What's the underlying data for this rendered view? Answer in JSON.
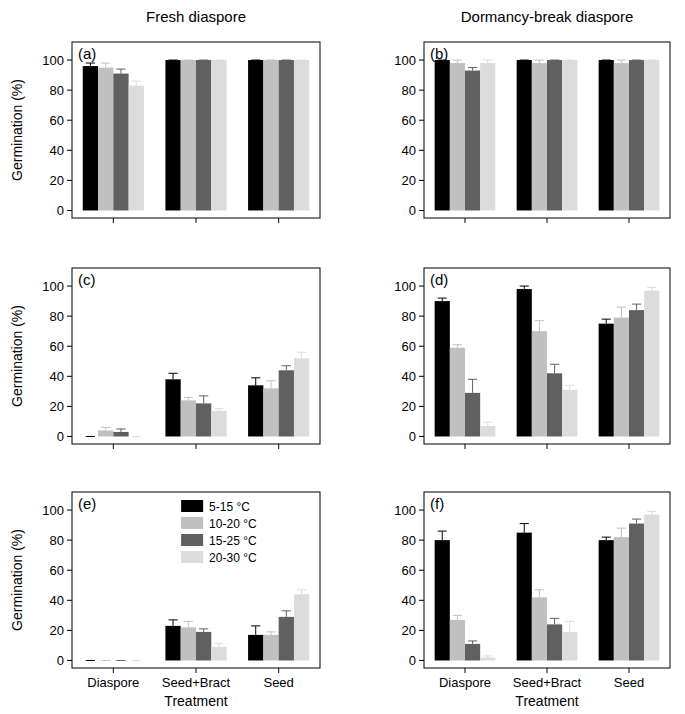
{
  "column_titles": [
    "Fresh diaspore",
    "Dormancy-break diaspore"
  ],
  "chart_data": [
    {
      "type": "bar",
      "title": "(a)",
      "y_label": "Germination (%)",
      "categories": [
        null,
        null,
        null
      ],
      "ylim": [
        -5,
        112
      ],
      "yticks": [
        0,
        20,
        40,
        60,
        80,
        100
      ],
      "series": [
        {
          "name": "5-15 °C",
          "color": "#000000",
          "values": [
            96,
            100,
            100
          ],
          "errors": [
            2,
            0,
            0
          ]
        },
        {
          "name": "10-20 °C",
          "color": "#c0c0c0",
          "values": [
            95,
            100,
            100
          ],
          "errors": [
            3,
            0,
            0
          ]
        },
        {
          "name": "15-25 °C",
          "color": "#606060",
          "values": [
            91,
            100,
            100
          ],
          "errors": [
            3,
            0,
            0
          ]
        },
        {
          "name": "20-30 °C",
          "color": "#dcdcdc",
          "values": [
            83,
            100,
            100
          ],
          "errors": [
            3,
            0,
            0
          ]
        }
      ]
    },
    {
      "type": "bar",
      "title": "(b)",
      "categories": [
        null,
        null,
        null
      ],
      "ylim": [
        -5,
        112
      ],
      "yticks": [
        0,
        20,
        40,
        60,
        80,
        100
      ],
      "series": [
        {
          "name": "5-15 °C",
          "color": "#000000",
          "values": [
            100,
            100,
            100
          ],
          "errors": [
            0,
            0,
            0
          ]
        },
        {
          "name": "10-20 °C",
          "color": "#c0c0c0",
          "values": [
            98,
            98,
            98
          ],
          "errors": [
            2,
            2,
            2
          ]
        },
        {
          "name": "15-25 °C",
          "color": "#606060",
          "values": [
            93,
            100,
            100
          ],
          "errors": [
            2,
            0,
            0
          ]
        },
        {
          "name": "20-30 °C",
          "color": "#dcdcdc",
          "values": [
            98,
            100,
            100
          ],
          "errors": [
            2,
            0,
            0
          ]
        }
      ]
    },
    {
      "type": "bar",
      "title": "(c)",
      "y_label": "Germination (%)",
      "categories": [
        null,
        null,
        null
      ],
      "ylim": [
        -5,
        112
      ],
      "yticks": [
        0,
        20,
        40,
        60,
        80,
        100
      ],
      "series": [
        {
          "name": "5-15 °C",
          "color": "#000000",
          "values": [
            0,
            38,
            34
          ],
          "errors": [
            0,
            4,
            5
          ]
        },
        {
          "name": "10-20 °C",
          "color": "#c0c0c0",
          "values": [
            4,
            24,
            32
          ],
          "errors": [
            2,
            2,
            5
          ]
        },
        {
          "name": "15-25 °C",
          "color": "#606060",
          "values": [
            3,
            22,
            44
          ],
          "errors": [
            2,
            5,
            3
          ]
        },
        {
          "name": "20-30 °C",
          "color": "#dcdcdc",
          "values": [
            0,
            17,
            52
          ],
          "errors": [
            0,
            1.5,
            4
          ]
        }
      ]
    },
    {
      "type": "bar",
      "title": "(d)",
      "categories": [
        null,
        null,
        null
      ],
      "ylim": [
        -5,
        112
      ],
      "yticks": [
        0,
        20,
        40,
        60,
        80,
        100
      ],
      "series": [
        {
          "name": "5-15 °C",
          "color": "#000000",
          "values": [
            90,
            98,
            75
          ],
          "errors": [
            2,
            2,
            3
          ]
        },
        {
          "name": "10-20 °C",
          "color": "#c0c0c0",
          "values": [
            59,
            70,
            79
          ],
          "errors": [
            2,
            7,
            7
          ]
        },
        {
          "name": "15-25 °C",
          "color": "#606060",
          "values": [
            29,
            42,
            84
          ],
          "errors": [
            9,
            6,
            4
          ]
        },
        {
          "name": "20-30 °C",
          "color": "#dcdcdc",
          "values": [
            7,
            31,
            97
          ],
          "errors": [
            2.5,
            3,
            2
          ]
        }
      ]
    },
    {
      "type": "bar",
      "title": "(e)",
      "y_label": "Germination (%)",
      "x_label": "Treatment",
      "legend": "top",
      "categories": [
        "Diaspore",
        "Seed+Bract",
        "Seed"
      ],
      "ylim": [
        -5,
        112
      ],
      "yticks": [
        0,
        20,
        40,
        60,
        80,
        100
      ],
      "series": [
        {
          "name": "5-15 °C",
          "color": "#000000",
          "values": [
            0,
            23,
            17
          ],
          "errors": [
            0,
            4,
            6
          ]
        },
        {
          "name": "10-20 °C",
          "color": "#c0c0c0",
          "values": [
            0,
            22,
            17
          ],
          "errors": [
            0,
            4,
            2
          ]
        },
        {
          "name": "15-25 °C",
          "color": "#606060",
          "values": [
            0,
            19,
            29
          ],
          "errors": [
            0,
            2,
            4
          ]
        },
        {
          "name": "20-30 °C",
          "color": "#dcdcdc",
          "values": [
            0,
            9,
            44
          ],
          "errors": [
            0,
            2.5,
            3
          ]
        }
      ]
    },
    {
      "type": "bar",
      "title": "(f)",
      "x_label": "Treatment",
      "categories": [
        "Diaspore",
        "Seed+Bract",
        "Seed"
      ],
      "ylim": [
        -5,
        112
      ],
      "yticks": [
        0,
        20,
        40,
        60,
        80,
        100
      ],
      "series": [
        {
          "name": "5-15 °C",
          "color": "#000000",
          "values": [
            80,
            85,
            80
          ],
          "errors": [
            6,
            6,
            2
          ]
        },
        {
          "name": "10-20 °C",
          "color": "#c0c0c0",
          "values": [
            27,
            42,
            82
          ],
          "errors": [
            3,
            5,
            6
          ]
        },
        {
          "name": "15-25 °C",
          "color": "#606060",
          "values": [
            11,
            24,
            91
          ],
          "errors": [
            2,
            4,
            3
          ]
        },
        {
          "name": "20-30 °C",
          "color": "#dcdcdc",
          "values": [
            2,
            19,
            97
          ],
          "errors": [
            1,
            7,
            2
          ]
        }
      ]
    }
  ]
}
